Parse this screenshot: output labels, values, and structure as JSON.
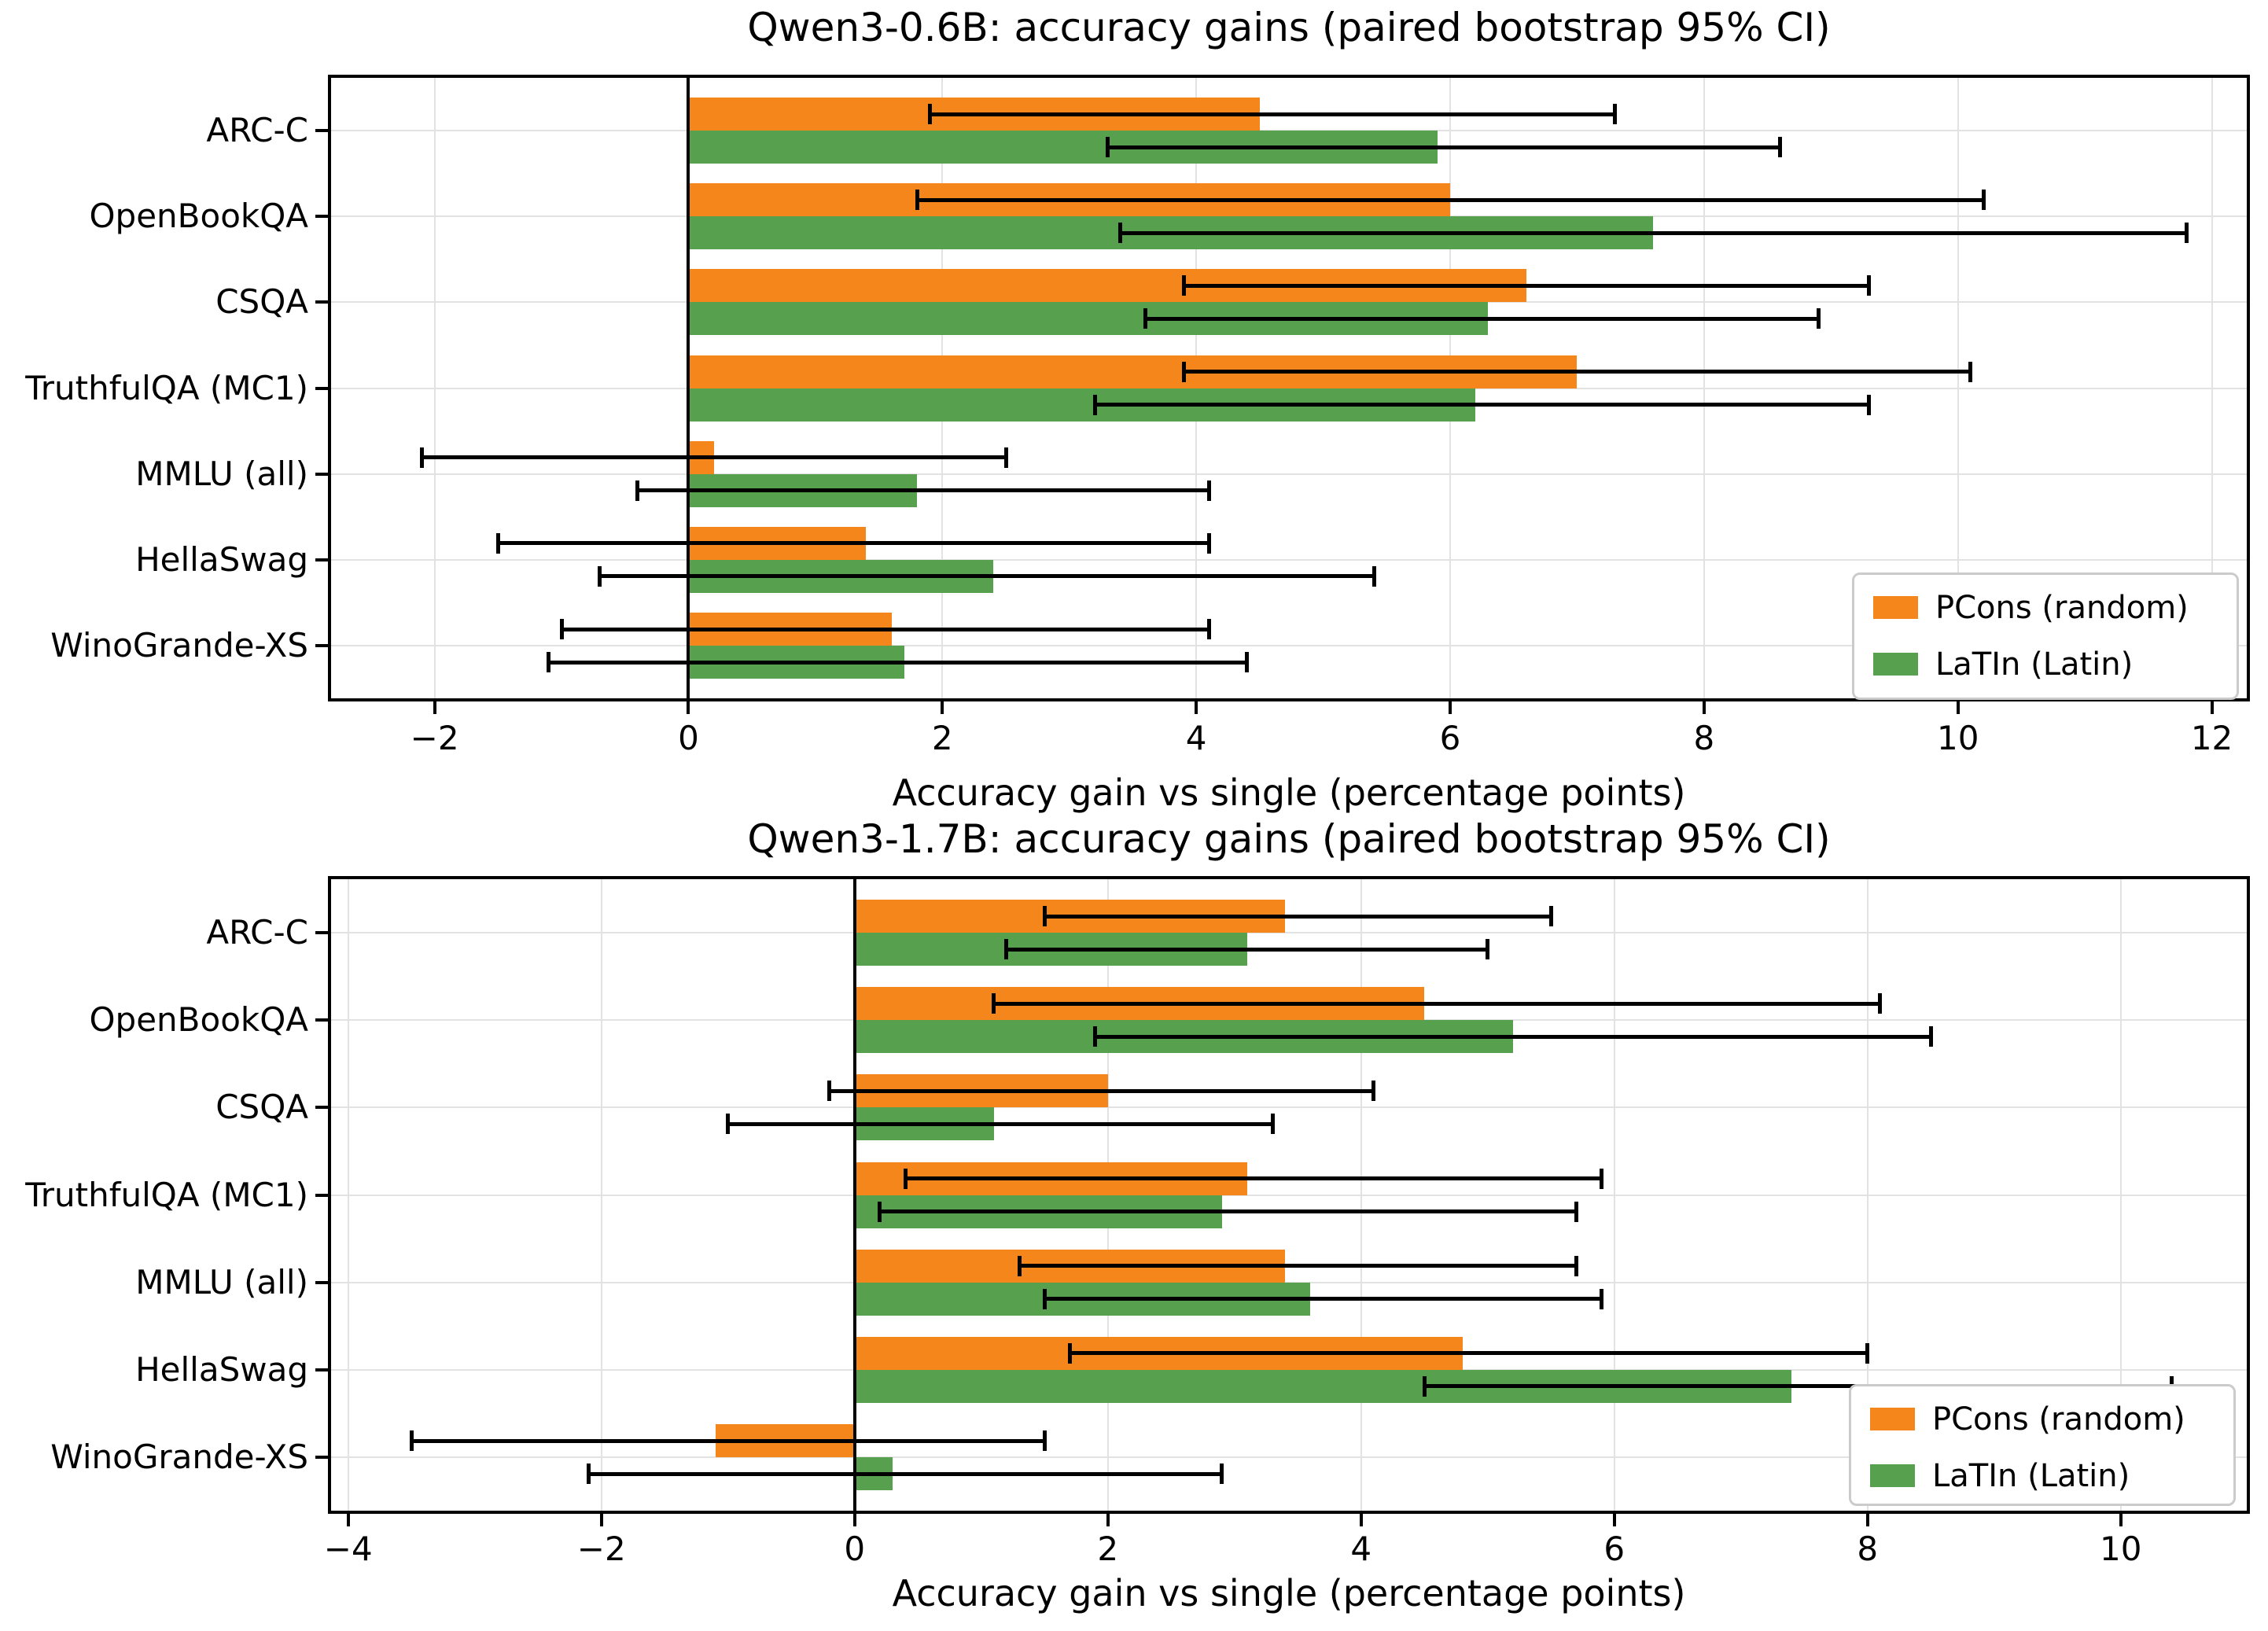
{
  "figure": {
    "background": "#ffffff",
    "accent_orange": "#f5861b",
    "accent_green": "#57a14e"
  },
  "legend": {
    "items": [
      {
        "label": "PCons (random)",
        "color": "#f5861b"
      },
      {
        "label": "LaTIn (Latin)",
        "color": "#57a14e"
      }
    ]
  },
  "chart_data": [
    {
      "type": "bar",
      "orientation": "horizontal",
      "title": "Qwen3-0.6B: accuracy gains (paired bootstrap 95% CI)",
      "xlabel": "Accuracy gain vs single (percentage points)",
      "ylabel": "",
      "categories": [
        "ARC-C",
        "OpenBookQA",
        "CSQA",
        "TruthfulQA (MC1)",
        "MMLU (all)",
        "HellaSwag",
        "WinoGrande-XS"
      ],
      "series": [
        {
          "name": "PCons (random)",
          "color": "#f5861b",
          "values": [
            4.5,
            6.0,
            6.6,
            7.0,
            0.2,
            1.4,
            1.6
          ],
          "ci_low": [
            1.9,
            1.8,
            3.9,
            3.9,
            -2.1,
            -1.5,
            -1.0
          ],
          "ci_high": [
            7.3,
            10.2,
            9.3,
            10.1,
            2.5,
            4.1,
            4.1
          ]
        },
        {
          "name": "LaTIn (Latin)",
          "color": "#57a14e",
          "values": [
            5.9,
            7.6,
            6.3,
            6.2,
            1.8,
            2.4,
            1.7
          ],
          "ci_low": [
            3.3,
            3.4,
            3.6,
            3.2,
            -0.4,
            -0.7,
            -1.1
          ],
          "ci_high": [
            8.6,
            11.8,
            8.9,
            9.3,
            4.1,
            5.4,
            4.4
          ]
        }
      ],
      "xticks": [
        -2,
        0,
        2,
        4,
        6,
        8,
        10,
        12
      ],
      "xlim": [
        -2.84,
        12.3
      ],
      "grid": true,
      "zero_line": true,
      "legend_position": "lower right",
      "error_bars": "95% CI"
    },
    {
      "type": "bar",
      "orientation": "horizontal",
      "title": "Qwen3-1.7B: accuracy gains (paired bootstrap 95% CI)",
      "xlabel": "Accuracy gain vs single (percentage points)",
      "ylabel": "",
      "categories": [
        "ARC-C",
        "OpenBookQA",
        "CSQA",
        "TruthfulQA (MC1)",
        "MMLU (all)",
        "HellaSwag",
        "WinoGrande-XS"
      ],
      "series": [
        {
          "name": "PCons (random)",
          "color": "#f5861b",
          "values": [
            3.4,
            4.5,
            2.0,
            3.1,
            3.4,
            4.8,
            -1.1
          ],
          "ci_low": [
            1.5,
            1.1,
            -0.2,
            0.4,
            1.3,
            1.7,
            -3.5
          ],
          "ci_high": [
            5.5,
            8.1,
            4.1,
            5.9,
            5.7,
            8.0,
            1.5
          ]
        },
        {
          "name": "LaTIn (Latin)",
          "color": "#57a14e",
          "values": [
            3.1,
            5.2,
            1.1,
            2.9,
            3.6,
            7.4,
            0.3
          ],
          "ci_low": [
            1.2,
            1.9,
            -1.0,
            0.2,
            1.5,
            4.5,
            -2.1
          ],
          "ci_high": [
            5.0,
            8.5,
            3.3,
            5.7,
            5.9,
            10.4,
            2.9
          ]
        }
      ],
      "xticks": [
        -4,
        -2,
        0,
        2,
        4,
        6,
        8,
        10
      ],
      "xlim": [
        -4.16,
        11.02
      ],
      "grid": true,
      "zero_line": true,
      "legend_position": "lower right",
      "error_bars": "95% CI"
    }
  ]
}
